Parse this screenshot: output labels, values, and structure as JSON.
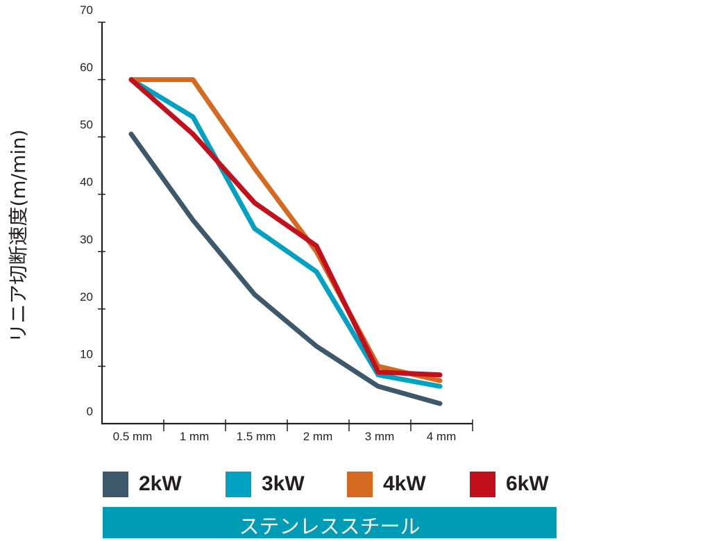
{
  "chart_data": {
    "type": "line",
    "categories": [
      "0.5 mm",
      "1 mm",
      "1.5 mm",
      "2 mm",
      "3 mm",
      "4 mm"
    ],
    "ylabel": "リニア切断速度(m/min)",
    "xlabel": "",
    "ylim": [
      0,
      70
    ],
    "yticks": [
      "0",
      "10",
      "20",
      "30",
      "40",
      "50",
      "60",
      "70"
    ],
    "grid": false,
    "series": [
      {
        "name": "2kW",
        "color": "#3d586b",
        "values": [
          50.5,
          35.5,
          22.5,
          13.5,
          6.5,
          3.5
        ]
      },
      {
        "name": "3kW",
        "color": "#00a1c1",
        "values": [
          60,
          53.5,
          34,
          26.5,
          8.5,
          6.5
        ]
      },
      {
        "name": "4kW",
        "color": "#d4691f",
        "values": [
          60,
          60,
          44.5,
          30,
          10,
          7.5
        ]
      },
      {
        "name": "6kW",
        "color": "#c2101d",
        "values": [
          60,
          50.5,
          38.5,
          31,
          9,
          8.5
        ]
      }
    ],
    "legend_position": "bottom",
    "banner": "ステンレススチール"
  }
}
